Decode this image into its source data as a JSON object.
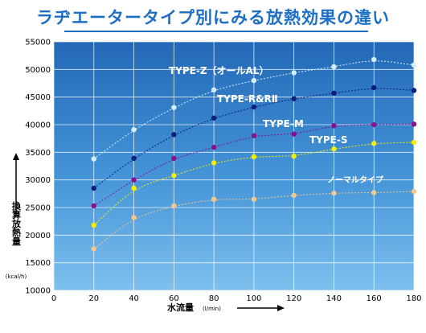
{
  "title": "ラヂエータータイプ別にみる放熱効果の違い",
  "chart_data": {
    "type": "scatter",
    "title": "ラヂエータータイプ別にみる放熱効果の違い",
    "xlabel": "水流量",
    "xunit": "(l/min)",
    "ylabel": "換算放熱量",
    "yunit": "(kcal/h)",
    "xlim": [
      0,
      180
    ],
    "ylim": [
      10000,
      55000
    ],
    "xticks": [
      "0",
      "20",
      "40",
      "60",
      "80",
      "100",
      "120",
      "140",
      "160",
      "180"
    ],
    "yticks": [
      "10000",
      "15000",
      "20000",
      "25000",
      "30000",
      "35000",
      "40000",
      "45000",
      "50000",
      "55000"
    ],
    "grid": true,
    "x": [
      20,
      40,
      60,
      80,
      100,
      120,
      140,
      160,
      180
    ],
    "series": [
      {
        "name": "TYPE-Z（オールAL）",
        "color": "#d6eefc",
        "values": [
          33800,
          39100,
          43100,
          46300,
          48000,
          49400,
          50500,
          51800,
          50800
        ]
      },
      {
        "name": "TYPE-R&RⅡ",
        "color": "#0d1f7a",
        "values": [
          28500,
          33900,
          38200,
          41200,
          43200,
          44700,
          45700,
          46700,
          46200
        ]
      },
      {
        "name": "TYPE-M",
        "color": "#8a0f8f",
        "values": [
          25300,
          30000,
          33900,
          35900,
          38000,
          38300,
          39800,
          40000,
          40100
        ]
      },
      {
        "name": "TYPE-S",
        "color": "#f5f000",
        "values": [
          21800,
          28500,
          30800,
          33100,
          34200,
          34300,
          35600,
          36600,
          36800
        ]
      },
      {
        "name": "ノーマルタイプ",
        "color": "#f2c88c",
        "values": [
          17500,
          23200,
          25300,
          26500,
          26500,
          27200,
          27600,
          27700,
          27900
        ]
      }
    ]
  }
}
